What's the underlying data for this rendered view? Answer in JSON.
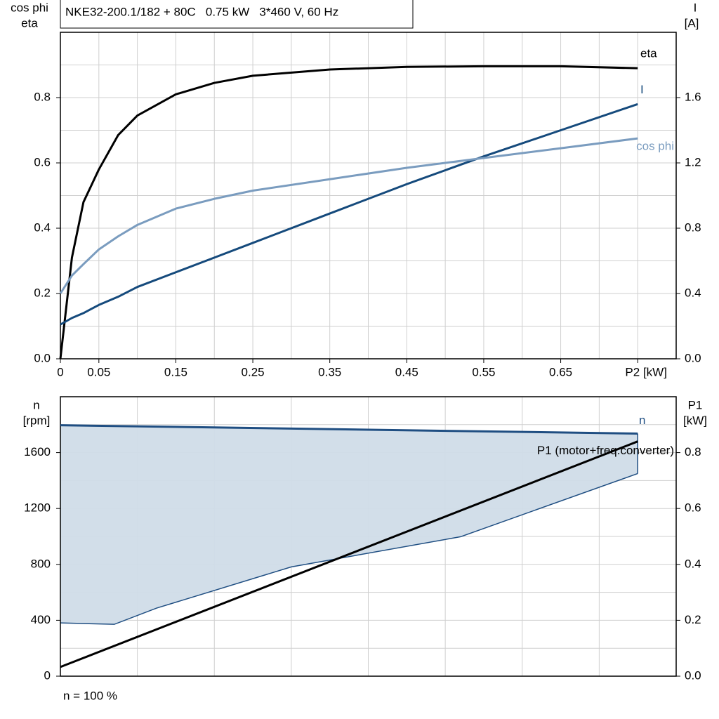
{
  "chart_data": [
    {
      "type": "line",
      "title": "NKE32-200.1/182 + 80C   0.75 kW   3*460 V, 60 Hz",
      "ylabel": [
        "cos phi",
        "eta"
      ],
      "y2label": [
        "I",
        "[A]"
      ],
      "x": [
        0,
        0.015,
        0.03,
        0.05,
        0.075,
        0.1,
        0.15,
        0.2,
        0.25,
        0.35,
        0.45,
        0.55,
        0.65,
        0.75
      ],
      "series": [
        {
          "name": "eta",
          "color": "#000000",
          "values": [
            0,
            0.31,
            0.48,
            0.58,
            0.685,
            0.745,
            0.81,
            0.845,
            0.867,
            0.886,
            0.894,
            0.896,
            0.896,
            0.89
          ]
        },
        {
          "name": "I",
          "color": "#154a7c",
          "axis": "y2",
          "values": [
            0.21,
            0.25,
            0.28,
            0.33,
            0.38,
            0.44,
            0.53,
            0.62,
            0.71,
            0.89,
            1.07,
            1.24,
            1.4,
            1.56
          ]
        },
        {
          "name": "cos phi",
          "color": "#7a9cbf",
          "values": [
            0.2,
            0.255,
            0.29,
            0.335,
            0.375,
            0.41,
            0.46,
            0.49,
            0.515,
            0.55,
            0.585,
            0.615,
            0.645,
            0.675
          ]
        }
      ],
      "xlim": [
        0,
        0.8
      ],
      "xticks": [
        0,
        0.05,
        0.15,
        0.25,
        0.35,
        0.45,
        0.55,
        0.65,
        {
          "value": 0.75,
          "label": "P2 [kW]"
        }
      ],
      "xgrid": [
        0.05,
        0.1,
        0.15,
        0.2,
        0.25,
        0.3,
        0.35,
        0.4,
        0.45,
        0.5,
        0.55,
        0.6,
        0.65,
        0.7,
        0.75
      ],
      "ylim": [
        0,
        1
      ],
      "yticks": [
        {
          "value": 0,
          "label": "0.0"
        },
        0.2,
        0.4,
        0.6,
        0.8
      ],
      "ygrid": [
        0.1,
        0.2,
        0.3,
        0.4,
        0.5,
        0.6,
        0.7,
        0.8,
        0.9
      ],
      "y2lim": [
        0,
        2
      ],
      "y2ticks": [
        {
          "value": 0,
          "label": "0.0"
        },
        0.4,
        0.8,
        1.2,
        1.6
      ],
      "grid": true
    },
    {
      "type": "line",
      "ylabel": [
        "n",
        "[rpm]"
      ],
      "y2label": [
        "P1",
        "[kW]"
      ],
      "annotation": "n = 100 %",
      "series": [
        {
          "name": "n",
          "color": "#1f4e82",
          "x": [
            0,
            0.75
          ],
          "values": [
            1796,
            1736
          ]
        },
        {
          "name": "P1 (motor+freq.converter)",
          "color": "#000000",
          "axis": "y2",
          "x": [
            0,
            0.75
          ],
          "values": [
            0.033,
            0.84
          ]
        }
      ],
      "band": {
        "color": "#d0dce8",
        "x": [
          0,
          0.07,
          0.125,
          0.3,
          0.52,
          0.75
        ],
        "upper": [
          1796,
          1790,
          1786,
          1772,
          1754,
          1736
        ],
        "lower": [
          381,
          371,
          487,
          782,
          998,
          1450
        ]
      },
      "xlim": [
        0,
        0.8
      ],
      "xgrid": [
        0.1,
        0.2,
        0.3,
        0.4,
        0.5,
        0.6,
        0.7
      ],
      "ylim": [
        0,
        2000
      ],
      "yticks": [
        0,
        400,
        800,
        1200,
        1600
      ],
      "ygrid": [
        200,
        400,
        600,
        800,
        1000,
        1200,
        1400,
        1600,
        1800
      ],
      "y2lim": [
        0,
        1
      ],
      "y2ticks": [
        {
          "value": 0,
          "label": "0.0"
        },
        0.2,
        0.4,
        0.6,
        0.8
      ],
      "grid": true
    }
  ]
}
